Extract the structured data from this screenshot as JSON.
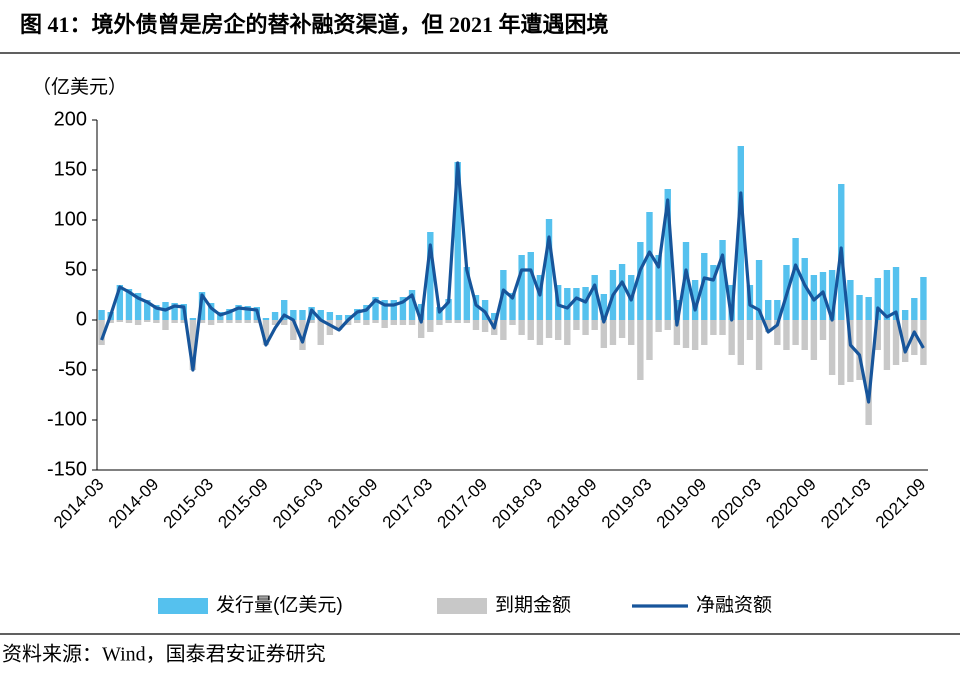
{
  "chart_data": {
    "type": "bar_line",
    "title": "图 41：境外债曾是房企的替补融资渠道，但 2021 年遭遇困境",
    "y_unit": "（亿美元）",
    "source": "资料来源：Wind，国泰君安证券研究",
    "categories": [
      "2014-03",
      null,
      null,
      null,
      null,
      null,
      "2014-09",
      null,
      null,
      null,
      null,
      null,
      "2015-03",
      null,
      null,
      null,
      null,
      null,
      "2015-09",
      null,
      null,
      null,
      null,
      null,
      "2016-03",
      null,
      null,
      null,
      null,
      null,
      "2016-09",
      null,
      null,
      null,
      null,
      null,
      "2017-03",
      null,
      null,
      null,
      null,
      null,
      "2017-09",
      null,
      null,
      null,
      null,
      null,
      "2018-03",
      null,
      null,
      null,
      null,
      null,
      "2018-09",
      null,
      null,
      null,
      null,
      null,
      "2019-03",
      null,
      null,
      null,
      null,
      null,
      "2019-09",
      null,
      null,
      null,
      null,
      null,
      "2020-03",
      null,
      null,
      null,
      null,
      null,
      "2020-09",
      null,
      null,
      null,
      null,
      null,
      "2021-03",
      null,
      null,
      null,
      null,
      null,
      "2021-09"
    ],
    "series": [
      {
        "name": "发行量(亿美元)",
        "color": "#55c1ee",
        "kind": "bar",
        "values": [
          10,
          8,
          35,
          31,
          27,
          20,
          15,
          18,
          17,
          16,
          2,
          28,
          17,
          8,
          11,
          15,
          14,
          13,
          2,
          8,
          20,
          10,
          10,
          13,
          10,
          8,
          5,
          5,
          11,
          15,
          23,
          20,
          20,
          23,
          30,
          16,
          88,
          13,
          21,
          158,
          53,
          25,
          20,
          7,
          50,
          27,
          65,
          68,
          45,
          101,
          35,
          32,
          32,
          33,
          45,
          26,
          50,
          56,
          45,
          78,
          108,
          65,
          131,
          20,
          78,
          40,
          67,
          55,
          80,
          35,
          174,
          35,
          60,
          20,
          20,
          55,
          82,
          62,
          45,
          48,
          50,
          136,
          40,
          25,
          23,
          42,
          50,
          53,
          10,
          22,
          43
        ]
      },
      {
        "name": "到期金额",
        "color": "#c8c8c8",
        "kind": "bar",
        "values": [
          -25,
          -3,
          -2,
          -3,
          -5,
          -2,
          -3,
          -10,
          -3,
          -3,
          -50,
          -3,
          -5,
          -3,
          -3,
          -3,
          -3,
          -3,
          -25,
          -5,
          -5,
          -20,
          -30,
          -3,
          -25,
          -15,
          -10,
          -5,
          -3,
          -5,
          -3,
          -8,
          -5,
          -5,
          -5,
          -18,
          -12,
          -5,
          -3,
          -3,
          -3,
          -10,
          -12,
          -15,
          -20,
          -5,
          -15,
          -20,
          -25,
          -18,
          -20,
          -25,
          -10,
          -15,
          -10,
          -28,
          -25,
          -18,
          -25,
          -60,
          -40,
          -12,
          -10,
          -25,
          -28,
          -30,
          -25,
          -15,
          -15,
          -35,
          -45,
          -20,
          -50,
          -12,
          -25,
          -30,
          -25,
          -30,
          -40,
          -20,
          -55,
          -65,
          -62,
          -60,
          -105,
          -30,
          -50,
          -45,
          -42,
          -35,
          -45
        ]
      },
      {
        "name": "净融资额",
        "color": "#17559b",
        "kind": "line",
        "values": [
          -20,
          5,
          33,
          28,
          22,
          18,
          12,
          10,
          14,
          13,
          -50,
          25,
          12,
          5,
          8,
          12,
          11,
          10,
          -25,
          -8,
          5,
          0,
          -22,
          10,
          0,
          -5,
          -10,
          0,
          8,
          10,
          20,
          15,
          15,
          18,
          25,
          -2,
          75,
          8,
          18,
          157,
          50,
          15,
          8,
          -8,
          30,
          22,
          50,
          50,
          25,
          83,
          15,
          12,
          22,
          18,
          35,
          -2,
          25,
          38,
          20,
          50,
          68,
          53,
          120,
          -5,
          50,
          10,
          42,
          40,
          65,
          0,
          127,
          15,
          10,
          -12,
          -5,
          25,
          55,
          35,
          20,
          28,
          0,
          72,
          -25,
          -35,
          -82,
          12,
          3,
          8,
          -32,
          -12,
          -28
        ]
      }
    ],
    "ylim": [
      -150,
      200
    ],
    "yticks": [
      -150,
      -100,
      -50,
      0,
      50,
      100,
      150,
      200
    ]
  }
}
